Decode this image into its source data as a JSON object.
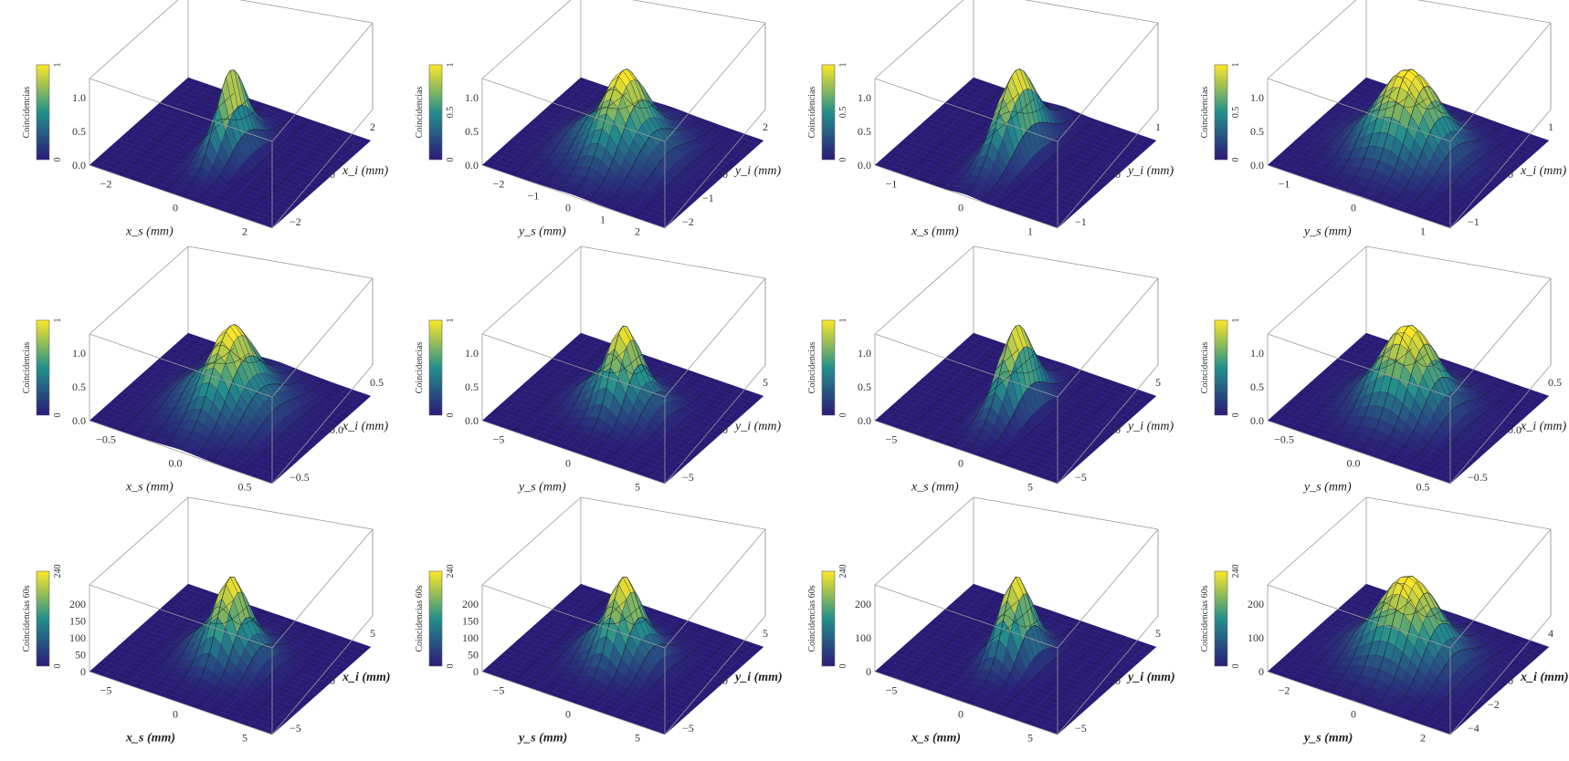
{
  "colors": {
    "low": "#2a1a78",
    "mid": "#22908c",
    "high": "#fde725",
    "box": "#9a9a9a",
    "mesh": "#1a1a1a"
  },
  "chart_data": [
    {
      "type": "surface",
      "row": 0,
      "col": 0,
      "xlabel": "x_s (mm)",
      "xsub": "s",
      "xvar": "x",
      "ylabel": "x_i (mm)",
      "ysub": "i",
      "yvar": "x",
      "zlabel": "Coincidencias",
      "xticks": [
        "−2",
        "0",
        "2"
      ],
      "yticks": [
        "2",
        "0",
        "−2"
      ],
      "zticks": [
        "1.0",
        "0.5",
        "0.0"
      ],
      "cbticks": [
        "1",
        "0"
      ],
      "xlim": [
        -3,
        3
      ],
      "ylim": [
        -3,
        3
      ],
      "peak_x": 0.0,
      "peak_y": 0.0,
      "sigma_x": 0.35,
      "sigma_y": 0.9,
      "fringes": true,
      "bold_labels": false
    },
    {
      "type": "surface",
      "row": 0,
      "col": 1,
      "xlabel": "y_s (mm)",
      "xsub": "s",
      "xvar": "y",
      "ylabel": "y_i (mm)",
      "ysub": "i",
      "yvar": "y",
      "zlabel": "Coincidencias",
      "xticks": [
        "−2",
        "−1",
        "0",
        "1",
        "2"
      ],
      "yticks": [
        "2",
        "1",
        "0",
        "−1",
        "−2"
      ],
      "zticks": [
        "1.0",
        "0.5",
        "0.0"
      ],
      "cbticks": [
        "1",
        "0.5",
        "0"
      ],
      "xlim": [
        -2.5,
        2.5
      ],
      "ylim": [
        -2.5,
        2.5
      ],
      "peak_x": 0.0,
      "peak_y": 0.0,
      "sigma_x": 0.7,
      "sigma_y": 0.9,
      "fringes": true,
      "bold_labels": false
    },
    {
      "type": "surface",
      "row": 0,
      "col": 2,
      "xlabel": "x_s (mm)",
      "xsub": "s",
      "xvar": "x",
      "ylabel": "y_i (mm)",
      "ysub": "i",
      "yvar": "y",
      "zlabel": "Coincidencias",
      "xticks": [
        "−1",
        "0",
        "1"
      ],
      "yticks": [
        "1",
        "0",
        "−1"
      ],
      "zticks": [
        "1.0",
        "0.5",
        "0.0"
      ],
      "cbticks": [
        "1",
        "0.5",
        "0"
      ],
      "xlim": [
        -1.5,
        1.5
      ],
      "ylim": [
        -1.5,
        1.5
      ],
      "peak_x": 0.0,
      "peak_y": 0.0,
      "sigma_x": 0.18,
      "sigma_y": 0.55,
      "fringes": false,
      "bold_labels": false
    },
    {
      "type": "surface",
      "row": 0,
      "col": 3,
      "xlabel": "y_s (mm)",
      "xsub": "s",
      "xvar": "y",
      "ylabel": "x_i (mm)",
      "ysub": "i",
      "yvar": "x",
      "zlabel": "Coincidencias",
      "xticks": [
        "−1",
        "0",
        "1"
      ],
      "yticks": [
        "1",
        "0",
        "−1"
      ],
      "zticks": [
        "1.0",
        "0.5",
        "0.0"
      ],
      "cbticks": [
        "1",
        "0.5",
        "0"
      ],
      "xlim": [
        -1.5,
        1.5
      ],
      "ylim": [
        -1.5,
        1.5
      ],
      "peak_x": 0.0,
      "peak_y": 0.0,
      "sigma_x": 0.45,
      "sigma_y": 0.5,
      "fringes": false,
      "bold_labels": false
    },
    {
      "type": "surface",
      "row": 1,
      "col": 0,
      "xlabel": "x_s (mm)",
      "xsub": "s",
      "xvar": "x",
      "ylabel": "x_i (mm)",
      "ysub": "i",
      "yvar": "x",
      "zlabel": "Coincidencias",
      "xticks": [
        "−0.5",
        "0.0",
        "0.5"
      ],
      "yticks": [
        "0.5",
        "0.0",
        "−0.5"
      ],
      "zticks": [
        "1.0",
        "0.5",
        "0.0"
      ],
      "cbticks": [
        "1",
        "0"
      ],
      "xlim": [
        -0.8,
        0.8
      ],
      "ylim": [
        -0.8,
        0.8
      ],
      "peak_x": 0.0,
      "peak_y": 0.0,
      "sigma_x": 0.22,
      "sigma_y": 0.3,
      "fringes": true,
      "bold_labels": false
    },
    {
      "type": "surface",
      "row": 1,
      "col": 1,
      "xlabel": "y_s (mm)",
      "xsub": "s",
      "xvar": "y",
      "ylabel": "y_i (mm)",
      "ysub": "i",
      "yvar": "y",
      "zlabel": "Coincidencias",
      "xticks": [
        "−5",
        "0",
        "5"
      ],
      "yticks": [
        "5",
        "0",
        "−5"
      ],
      "zticks": [
        "1.0",
        "0.5",
        "0.0"
      ],
      "cbticks": [
        "1",
        "0"
      ],
      "xlim": [
        -7,
        7
      ],
      "ylim": [
        -7,
        7
      ],
      "peak_x": 0.0,
      "peak_y": 0.0,
      "sigma_x": 1.6,
      "sigma_y": 1.8,
      "fringes": true,
      "bold_labels": false
    },
    {
      "type": "surface",
      "row": 1,
      "col": 2,
      "xlabel": "x_s (mm)",
      "xsub": "s",
      "xvar": "x",
      "ylabel": "y_i (mm)",
      "ysub": "i",
      "yvar": "y",
      "zlabel": "Coincidencias",
      "xticks": [
        "−5",
        "0",
        "5"
      ],
      "yticks": [
        "5",
        "0",
        "−5"
      ],
      "zticks": [
        "1.0",
        "0.5",
        "0.0"
      ],
      "cbticks": [
        "1",
        "0"
      ],
      "xlim": [
        -7,
        7
      ],
      "ylim": [
        -7,
        7
      ],
      "peak_x": 0.0,
      "peak_y": 0.0,
      "sigma_x": 0.8,
      "sigma_y": 2.2,
      "fringes": false,
      "bold_labels": false
    },
    {
      "type": "surface",
      "row": 1,
      "col": 3,
      "xlabel": "y_s (mm)",
      "xsub": "s",
      "xvar": "y",
      "ylabel": "x_i (mm)",
      "ysub": "i",
      "yvar": "x",
      "zlabel": "Coincidencias",
      "xticks": [
        "−0.5",
        "0.0",
        "0.5"
      ],
      "yticks": [
        "0.5",
        "0.0",
        "−0.5"
      ],
      "zticks": [
        "1.0",
        "0.5",
        "0.0"
      ],
      "cbticks": [
        "1",
        "0"
      ],
      "xlim": [
        -0.8,
        0.8
      ],
      "ylim": [
        -0.8,
        0.8
      ],
      "peak_x": 0.0,
      "peak_y": 0.0,
      "sigma_x": 0.22,
      "sigma_y": 0.25,
      "fringes": false,
      "bold_labels": false
    },
    {
      "type": "surface",
      "row": 2,
      "col": 0,
      "xlabel": "x_s (mm)",
      "xsub": "s",
      "xvar": "x",
      "ylabel": "x_i (mm)",
      "ysub": "i",
      "yvar": "x",
      "zlabel": "Coincidencias 60s",
      "xticks": [
        "−5",
        "0",
        "5"
      ],
      "yticks": [
        "5",
        "0",
        "−5"
      ],
      "zticks": [
        "200",
        "150",
        "100",
        "50",
        "0"
      ],
      "cbticks": [
        "240",
        "0"
      ],
      "xlim": [
        -6,
        6
      ],
      "ylim": [
        -6,
        6
      ],
      "peak_x": 0.0,
      "peak_y": 0.0,
      "sigma_x": 1.3,
      "sigma_y": 1.6,
      "fringes": true,
      "bold_labels": true
    },
    {
      "type": "surface",
      "row": 2,
      "col": 1,
      "xlabel": "y_s (mm)",
      "xsub": "s",
      "xvar": "y",
      "ylabel": "y_i (mm)",
      "ysub": "i",
      "yvar": "y",
      "zlabel": "Coincidencias 60s",
      "xticks": [
        "−5",
        "0",
        "5"
      ],
      "yticks": [
        "5",
        "0",
        "−5"
      ],
      "zticks": [
        "200",
        "150",
        "100",
        "50",
        "0"
      ],
      "cbticks": [
        "240",
        "0"
      ],
      "xlim": [
        -6,
        6
      ],
      "ylim": [
        -6,
        6
      ],
      "peak_x": 0.0,
      "peak_y": 0.0,
      "sigma_x": 1.3,
      "sigma_y": 1.6,
      "fringes": true,
      "bold_labels": true
    },
    {
      "type": "surface",
      "row": 2,
      "col": 2,
      "xlabel": "x_s (mm)",
      "xsub": "s",
      "xvar": "x",
      "ylabel": "y_i (mm)",
      "ysub": "i",
      "yvar": "y",
      "zlabel": "Coincidencias 60s",
      "xticks": [
        "−5",
        "0",
        "5"
      ],
      "yticks": [
        "5",
        "0",
        "−5"
      ],
      "zticks": [
        "200",
        "100",
        "0"
      ],
      "cbticks": [
        "240",
        "0"
      ],
      "xlim": [
        -6,
        6
      ],
      "ylim": [
        -6,
        6
      ],
      "peak_x": 0.0,
      "peak_y": 0.0,
      "sigma_x": 0.8,
      "sigma_y": 1.5,
      "fringes": false,
      "bold_labels": true
    },
    {
      "type": "surface",
      "row": 2,
      "col": 3,
      "xlabel": "y_s (mm)",
      "xsub": "s",
      "xvar": "y",
      "ylabel": "x_i (mm)",
      "ysub": "i",
      "yvar": "x",
      "zlabel": "Coincidencias 60s",
      "xticks": [
        "−2",
        "0",
        "2"
      ],
      "yticks": [
        "4",
        "2",
        "0",
        "−2",
        "−4"
      ],
      "zticks": [
        "200",
        "100",
        "0"
      ],
      "cbticks": [
        "240",
        "0"
      ],
      "xlim": [
        -3,
        3
      ],
      "ylim": [
        -5,
        5
      ],
      "peak_x": 0.0,
      "peak_y": 0.0,
      "sigma_x": 0.9,
      "sigma_y": 1.6,
      "fringes": false,
      "bold_labels": true
    }
  ]
}
